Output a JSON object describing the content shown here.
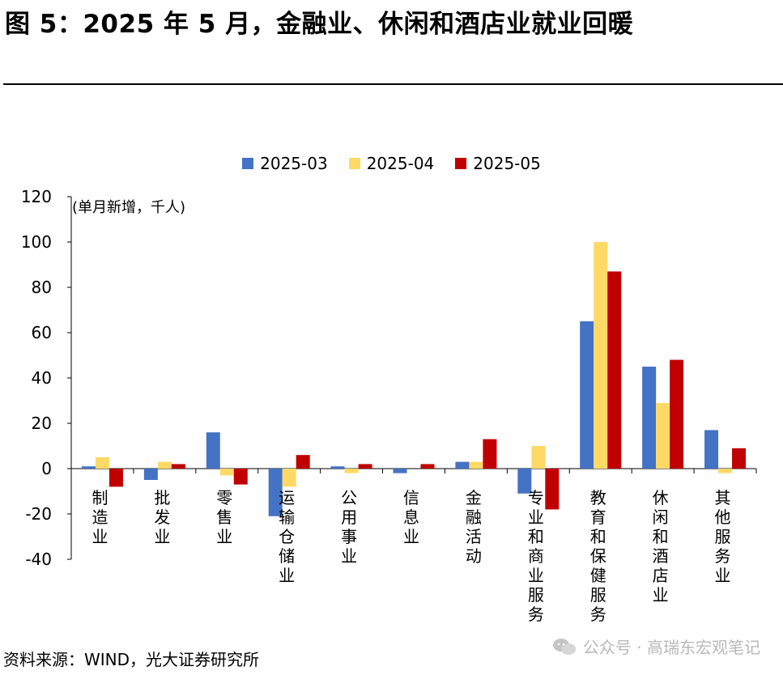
{
  "title": "图 5：2025 年 5 月，金融业、休闲和酒店业就业回暖",
  "unit_label": "(单月新增，千人)",
  "source": "资料来源：WIND，光大证券研究所",
  "watermark": "公众号 · 高瑞东宏观笔记",
  "chart_data": {
    "type": "bar",
    "categories": [
      "制造业",
      "批发业",
      "零售业",
      "运输仓储业",
      "公用事业",
      "信息业",
      "金融活动",
      "专业和商业服务",
      "教育和保健服务",
      "休闲和酒店业",
      "其他服务业"
    ],
    "series": [
      {
        "name": "2025-03",
        "color": "#4472C4",
        "values": [
          1,
          -5,
          16,
          -21,
          1,
          -2,
          3,
          -11,
          65,
          45,
          17
        ]
      },
      {
        "name": "2025-04",
        "color": "#FFD966",
        "values": [
          5,
          3,
          -3,
          -8,
          -2,
          0,
          3,
          10,
          100,
          29,
          -2
        ]
      },
      {
        "name": "2025-05",
        "color": "#C00000",
        "values": [
          -8,
          2,
          -7,
          6,
          2,
          2,
          13,
          -18,
          87,
          48,
          9
        ]
      }
    ],
    "ylim": [
      -40,
      120
    ],
    "yticks": [
      120,
      100,
      80,
      60,
      40,
      20,
      0,
      -20,
      -40
    ],
    "ytick_labels": [
      "120",
      "100",
      "80",
      "60",
      "40",
      "20",
      "0",
      "-20",
      "-40"
    ],
    "legend_position": "top-center",
    "grid": false
  }
}
